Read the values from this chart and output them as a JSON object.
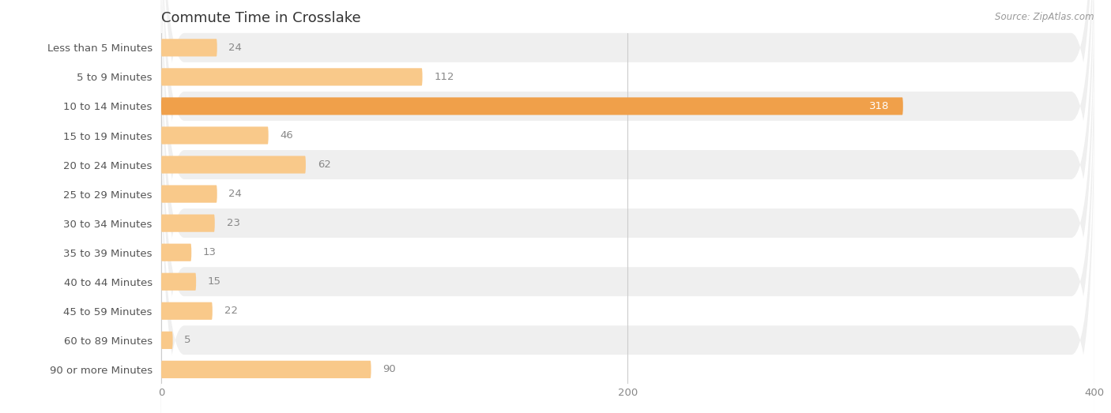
{
  "title": "Commute Time in Crosslake",
  "source": "Source: ZipAtlas.com",
  "categories": [
    "Less than 5 Minutes",
    "5 to 9 Minutes",
    "10 to 14 Minutes",
    "15 to 19 Minutes",
    "20 to 24 Minutes",
    "25 to 29 Minutes",
    "30 to 34 Minutes",
    "35 to 39 Minutes",
    "40 to 44 Minutes",
    "45 to 59 Minutes",
    "60 to 89 Minutes",
    "90 or more Minutes"
  ],
  "values": [
    24,
    112,
    318,
    46,
    62,
    24,
    23,
    13,
    15,
    22,
    5,
    90
  ],
  "bar_color_normal": "#f9c98a",
  "bar_color_highlight": "#f0a04a",
  "highlight_index": 2,
  "value_color_normal": "#888888",
  "value_color_highlight": "#ffffff",
  "bg_color": "#ffffff",
  "row_bg_even": "#efefef",
  "row_bg_odd": "#ffffff",
  "title_color": "#333333",
  "source_color": "#999999",
  "cat_label_color": "#555555",
  "grid_color": "#cccccc",
  "xlim": [
    0,
    400
  ],
  "xticks": [
    0,
    200,
    400
  ],
  "title_fontsize": 13,
  "cat_label_fontsize": 9.5,
  "value_fontsize": 9.5,
  "source_fontsize": 8.5,
  "xtick_fontsize": 9.5,
  "bar_height": 0.6,
  "figsize": [
    14.06,
    5.23
  ],
  "dpi": 100
}
